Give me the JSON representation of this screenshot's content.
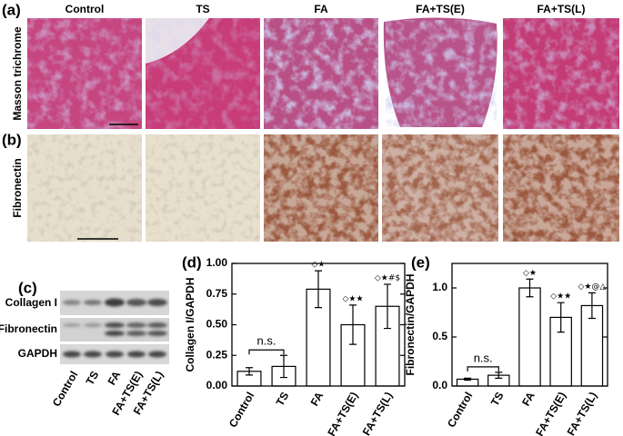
{
  "panels": {
    "a": "(a)",
    "b": "(b)",
    "c": "(c)"
  },
  "micrograph_columns": [
    "Control",
    "TS",
    "FA",
    "FA+TS(E)",
    "FA+TS(L)"
  ],
  "row_labels": [
    "Masson trichrome",
    "Fibronectin"
  ],
  "blot": {
    "bands": [
      "Collagen I",
      "Fibronectin",
      "GAPDH"
    ],
    "lanes": [
      "Control",
      "TS",
      "FA",
      "FA+TS(E)",
      "FA+TS(L)"
    ]
  },
  "chart_data": [
    {
      "type": "bar",
      "panel_label": "(d)",
      "y_label": "Collagen I/GAPDH",
      "categories": [
        "Control",
        "TS",
        "FA",
        "FA+TS(E)",
        "FA+TS(L)"
      ],
      "values": [
        0.12,
        0.16,
        0.79,
        0.5,
        0.65
      ],
      "errors": [
        0.03,
        0.09,
        0.15,
        0.16,
        0.18
      ],
      "annotations": [
        null,
        null,
        "◇★",
        "◇★★",
        "◇★#$"
      ],
      "bracket_label": "n.s.",
      "color": "#ffffff",
      "ylim": [
        0,
        1.0
      ],
      "yticks": [
        {
          "value": 0,
          "label": "0.00"
        },
        {
          "value": 0.25,
          "label": "0.25"
        },
        {
          "value": 0.5,
          "label": "0.50"
        },
        {
          "value": 0.75,
          "label": "0.75"
        },
        {
          "value": 1.0,
          "label": "1.00"
        }
      ]
    },
    {
      "type": "bar",
      "panel_label": "(e)",
      "y_label": "Fibronectin/GAPDH",
      "categories": [
        "Control",
        "TS",
        "FA",
        "FA+TS(E)",
        "FA+TS(L)"
      ],
      "values": [
        0.07,
        0.11,
        1.0,
        0.7,
        0.82
      ],
      "errors": [
        0.01,
        0.03,
        0.09,
        0.15,
        0.13
      ],
      "annotations": [
        null,
        null,
        "◇★",
        "◇★★",
        "◇★@△"
      ],
      "bracket_label": "n.s.",
      "color": "#ffffff",
      "ylim": [
        0,
        1.25
      ],
      "yticks": [
        {
          "value": 0,
          "label": "0.0"
        },
        {
          "value": 0.5,
          "label": "0.5"
        },
        {
          "value": 1.0,
          "label": "1.0"
        }
      ]
    }
  ]
}
